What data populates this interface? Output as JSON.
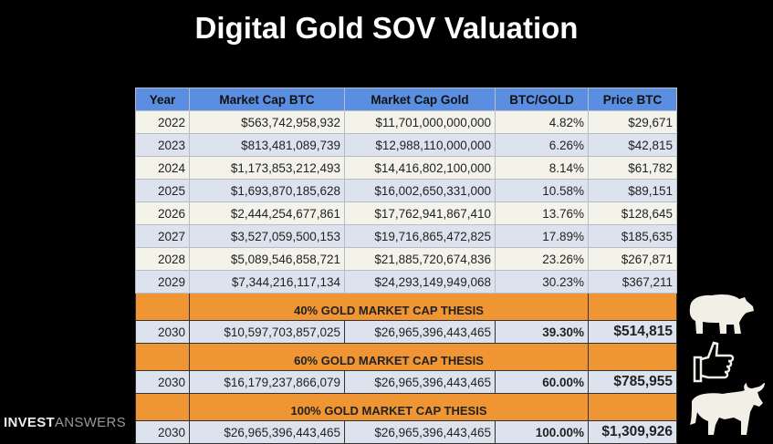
{
  "title": "Digital Gold SOV Valuation",
  "headers": [
    "Year",
    "Market Cap BTC",
    "Market Cap Gold",
    "BTC/GOLD",
    "Price BTC"
  ],
  "rows": [
    [
      "2022",
      "$563,742,958,932",
      "$11,701,000,000,000",
      "4.82%",
      "$29,671"
    ],
    [
      "2023",
      "$813,481,089,739",
      "$12,988,110,000,000",
      "6.26%",
      "$42,815"
    ],
    [
      "2024",
      "$1,173,853,212,493",
      "$14,416,802,100,000",
      "8.14%",
      "$61,782"
    ],
    [
      "2025",
      "$1,693,870,185,628",
      "$16,002,650,331,000",
      "10.58%",
      "$89,151"
    ],
    [
      "2026",
      "$2,444,254,677,861",
      "$17,762,941,867,410",
      "13.76%",
      "$128,645"
    ],
    [
      "2027",
      "$3,527,059,500,153",
      "$19,716,865,472,825",
      "17.89%",
      "$185,635"
    ],
    [
      "2028",
      "$5,089,546,858,721",
      "$21,885,720,674,836",
      "23.26%",
      "$267,871"
    ],
    [
      "2029",
      "$7,344,216,117,134",
      "$24,293,149,949,068",
      "30.23%",
      "$367,211"
    ]
  ],
  "theses": [
    {
      "label": "40% GOLD MARKET CAP THESIS",
      "icon": "bear-icon",
      "row": [
        "2030",
        "$10,597,703,857,025",
        "$26,965,396,443,465",
        "39.30%",
        "$514,815"
      ]
    },
    {
      "label": "60% GOLD MARKET CAP THESIS",
      "icon": "thumbs-up-icon",
      "row": [
        "2030",
        "$16,179,237,866,079",
        "$26,965,396,443,465",
        "60.00%",
        "$785,955"
      ]
    },
    {
      "label": "100% GOLD MARKET CAP THESIS",
      "icon": "bull-icon",
      "row": [
        "2030",
        "$26,965,396,443,465",
        "$26,965,396,443,465",
        "100.00%",
        "$1,309,926"
      ]
    }
  ],
  "logo": {
    "bold": "INVEST",
    "light": "ANSWERS"
  },
  "colors": {
    "header": "#5a8ee0",
    "thesis": "#ef9533"
  }
}
